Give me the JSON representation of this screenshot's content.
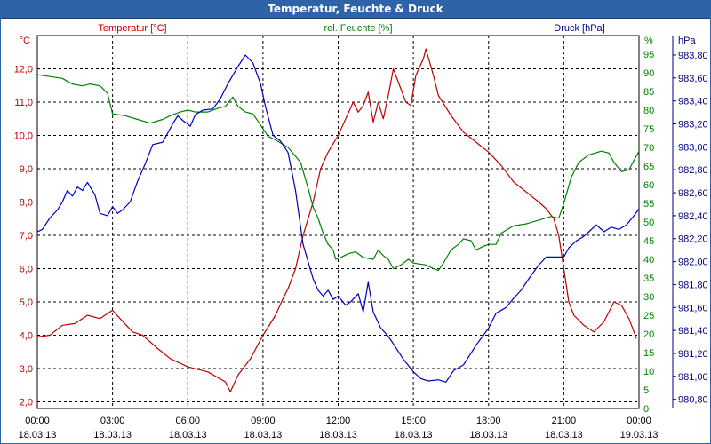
{
  "window": {
    "title": "Temperatur, Feuchte & Druck"
  },
  "chart_data": {
    "type": "line",
    "title": "Temperatur, Feuchte & Druck",
    "x_tick_labels": [
      {
        "time": "00:00",
        "date": "18.03.13"
      },
      {
        "time": "03:00",
        "date": "18.03.13"
      },
      {
        "time": "06:00",
        "date": "18.03.13"
      },
      {
        "time": "09:00",
        "date": "18.03.13"
      },
      {
        "time": "12:00",
        "date": "18.03.13"
      },
      {
        "time": "15:00",
        "date": "18.03.13"
      },
      {
        "time": "18:00",
        "date": "18.03.13"
      },
      {
        "time": "21:00",
        "date": "18.03.13"
      },
      {
        "time": "00:00",
        "date": "19.03.13"
      }
    ],
    "xlim_hours": [
      0,
      24
    ],
    "grid": true,
    "axes": {
      "temperature": {
        "label": "Temperatur [°C]",
        "unit": "°C",
        "side": "left",
        "ylim": [
          1.8,
          13.0
        ],
        "ticks": [
          "2,0",
          "3,0",
          "4,0",
          "5,0",
          "6,0",
          "7,0",
          "8,0",
          "9,0",
          "10,0",
          "11,0",
          "12,0"
        ],
        "tick_values": [
          2,
          3,
          4,
          5,
          6,
          7,
          8,
          9,
          10,
          11,
          12
        ]
      },
      "humidity": {
        "label": "rel. Feuchte [%]",
        "unit": "%",
        "side": "right-inner",
        "ylim": [
          0,
          100
        ],
        "ticks": [
          "0",
          "5",
          "10",
          "15",
          "20",
          "25",
          "30",
          "35",
          "40",
          "45",
          "50",
          "55",
          "60",
          "65",
          "70",
          "75",
          "80",
          "85",
          "90",
          "95"
        ],
        "tick_values": [
          0,
          5,
          10,
          15,
          20,
          25,
          30,
          35,
          40,
          45,
          50,
          55,
          60,
          65,
          70,
          75,
          80,
          85,
          90,
          95
        ]
      },
      "pressure": {
        "label": "Druck [hPa]",
        "unit": "hPa",
        "side": "right-outer",
        "ylim": [
          980.72,
          983.97
        ],
        "ticks": [
          "980,80",
          "981,00",
          "981,20",
          "981,40",
          "981,60",
          "981,80",
          "982,00",
          "982,20",
          "982,40",
          "982,60",
          "982,80",
          "983,00",
          "983,20",
          "983,40",
          "983,60",
          "983,80"
        ],
        "tick_values": [
          980.8,
          981.0,
          981.2,
          981.4,
          981.6,
          981.8,
          982.0,
          982.2,
          982.4,
          982.6,
          982.8,
          983.0,
          983.2,
          983.4,
          983.6,
          983.8
        ]
      }
    },
    "series": [
      {
        "name": "Temperatur [°C]",
        "axis": "temperature",
        "color": "#c00000",
        "points": [
          [
            0.0,
            3.95
          ],
          [
            0.5,
            4.0
          ],
          [
            1.0,
            4.3
          ],
          [
            1.5,
            4.35
          ],
          [
            2.0,
            4.6
          ],
          [
            2.5,
            4.5
          ],
          [
            3.0,
            4.75
          ],
          [
            3.3,
            4.5
          ],
          [
            3.8,
            4.1
          ],
          [
            4.2,
            4.0
          ],
          [
            4.8,
            3.6
          ],
          [
            5.3,
            3.3
          ],
          [
            6.0,
            3.05
          ],
          [
            6.8,
            2.9
          ],
          [
            7.5,
            2.6
          ],
          [
            7.7,
            2.3
          ],
          [
            8.0,
            2.8
          ],
          [
            8.5,
            3.3
          ],
          [
            9.0,
            4.0
          ],
          [
            9.5,
            4.6
          ],
          [
            9.8,
            5.1
          ],
          [
            10.0,
            5.4
          ],
          [
            10.3,
            6.0
          ],
          [
            10.6,
            7.0
          ],
          [
            11.0,
            8.0
          ],
          [
            11.3,
            9.0
          ],
          [
            11.6,
            9.5
          ],
          [
            12.0,
            10.0
          ],
          [
            12.3,
            10.5
          ],
          [
            12.6,
            11.0
          ],
          [
            12.8,
            10.7
          ],
          [
            13.0,
            10.9
          ],
          [
            13.2,
            11.3
          ],
          [
            13.4,
            10.4
          ],
          [
            13.6,
            11.0
          ],
          [
            13.8,
            10.5
          ],
          [
            14.0,
            11.2
          ],
          [
            14.2,
            12.0
          ],
          [
            14.4,
            11.6
          ],
          [
            14.7,
            11.0
          ],
          [
            14.9,
            10.9
          ],
          [
            15.1,
            11.8
          ],
          [
            15.4,
            12.3
          ],
          [
            15.5,
            12.6
          ],
          [
            15.8,
            11.8
          ],
          [
            16.0,
            11.2
          ],
          [
            16.5,
            10.6
          ],
          [
            17.0,
            10.1
          ],
          [
            17.5,
            9.8
          ],
          [
            18.0,
            9.5
          ],
          [
            18.5,
            9.1
          ],
          [
            19.0,
            8.6
          ],
          [
            19.5,
            8.3
          ],
          [
            20.0,
            8.0
          ],
          [
            20.3,
            7.8
          ],
          [
            20.6,
            7.5
          ],
          [
            20.8,
            7.0
          ],
          [
            21.0,
            6.0
          ],
          [
            21.2,
            5.0
          ],
          [
            21.4,
            4.6
          ],
          [
            21.8,
            4.3
          ],
          [
            22.2,
            4.1
          ],
          [
            22.6,
            4.4
          ],
          [
            23.0,
            5.0
          ],
          [
            23.3,
            4.9
          ],
          [
            23.6,
            4.5
          ],
          [
            23.9,
            3.9
          ]
        ]
      },
      {
        "name": "rel. Feuchte [%]",
        "axis": "humidity",
        "color": "#008000",
        "points": [
          [
            0.0,
            89.5
          ],
          [
            0.5,
            89.0
          ],
          [
            1.0,
            88.5
          ],
          [
            1.4,
            87.0
          ],
          [
            1.8,
            86.5
          ],
          [
            2.1,
            87.0
          ],
          [
            2.5,
            86.5
          ],
          [
            2.8,
            84.5
          ],
          [
            3.0,
            79.0
          ],
          [
            3.5,
            78.5
          ],
          [
            4.0,
            77.5
          ],
          [
            4.5,
            76.5
          ],
          [
            5.0,
            77.5
          ],
          [
            5.3,
            78.5
          ],
          [
            5.7,
            79.5
          ],
          [
            6.0,
            80.0
          ],
          [
            6.3,
            79.5
          ],
          [
            6.8,
            79.5
          ],
          [
            7.2,
            80.5
          ],
          [
            7.5,
            81.0
          ],
          [
            7.8,
            83.5
          ],
          [
            8.0,
            81.0
          ],
          [
            8.3,
            79.5
          ],
          [
            8.6,
            79.0
          ],
          [
            8.9,
            76.0
          ],
          [
            9.2,
            73.0
          ],
          [
            9.5,
            72.0
          ],
          [
            10.0,
            70.0
          ],
          [
            10.5,
            66.0
          ],
          [
            10.8,
            59.0
          ],
          [
            11.0,
            54.0
          ],
          [
            11.2,
            51.0
          ],
          [
            11.4,
            47.0
          ],
          [
            11.6,
            44.0
          ],
          [
            11.8,
            42.5
          ],
          [
            11.9,
            40.0
          ],
          [
            12.1,
            40.5
          ],
          [
            12.4,
            41.5
          ],
          [
            12.7,
            42.0
          ],
          [
            13.0,
            40.5
          ],
          [
            13.4,
            40.0
          ],
          [
            13.6,
            42.5
          ],
          [
            13.8,
            41.0
          ],
          [
            14.0,
            40.0
          ],
          [
            14.2,
            37.5
          ],
          [
            14.5,
            38.5
          ],
          [
            14.8,
            40.0
          ],
          [
            15.0,
            39.0
          ],
          [
            15.5,
            38.5
          ],
          [
            15.8,
            37.5
          ],
          [
            16.0,
            37.0
          ],
          [
            16.2,
            39.0
          ],
          [
            16.5,
            42.5
          ],
          [
            16.8,
            44.0
          ],
          [
            17.0,
            45.5
          ],
          [
            17.3,
            45.0
          ],
          [
            17.5,
            42.5
          ],
          [
            17.8,
            43.5
          ],
          [
            18.0,
            44.0
          ],
          [
            18.3,
            44.0
          ],
          [
            18.5,
            47.0
          ],
          [
            19.0,
            49.0
          ],
          [
            19.5,
            49.5
          ],
          [
            20.0,
            50.5
          ],
          [
            20.5,
            51.5
          ],
          [
            20.8,
            51.0
          ],
          [
            21.0,
            55.0
          ],
          [
            21.3,
            62.0
          ],
          [
            21.6,
            66.0
          ],
          [
            22.0,
            68.0
          ],
          [
            22.5,
            69.0
          ],
          [
            22.8,
            68.5
          ],
          [
            23.0,
            66.0
          ],
          [
            23.3,
            63.5
          ],
          [
            23.6,
            64.0
          ],
          [
            24.0,
            69.0
          ]
        ]
      },
      {
        "name": "Druck [hPa]",
        "axis": "pressure",
        "color": "#0000c0",
        "points": [
          [
            0.0,
            982.26
          ],
          [
            0.2,
            982.28
          ],
          [
            0.5,
            982.38
          ],
          [
            0.8,
            982.45
          ],
          [
            1.0,
            982.52
          ],
          [
            1.2,
            982.62
          ],
          [
            1.4,
            982.57
          ],
          [
            1.6,
            982.65
          ],
          [
            1.8,
            982.62
          ],
          [
            2.0,
            982.69
          ],
          [
            2.3,
            982.58
          ],
          [
            2.5,
            982.42
          ],
          [
            2.8,
            982.4
          ],
          [
            3.0,
            982.48
          ],
          [
            3.2,
            982.42
          ],
          [
            3.4,
            982.45
          ],
          [
            3.7,
            982.52
          ],
          [
            4.0,
            982.7
          ],
          [
            4.3,
            982.85
          ],
          [
            4.6,
            983.02
          ],
          [
            4.8,
            983.03
          ],
          [
            5.0,
            983.04
          ],
          [
            5.2,
            983.12
          ],
          [
            5.4,
            983.2
          ],
          [
            5.6,
            983.27
          ],
          [
            5.8,
            983.23
          ],
          [
            6.1,
            983.18
          ],
          [
            6.3,
            983.28
          ],
          [
            6.6,
            983.32
          ],
          [
            7.0,
            983.33
          ],
          [
            7.3,
            983.42
          ],
          [
            7.6,
            983.55
          ],
          [
            8.0,
            983.7
          ],
          [
            8.3,
            983.8
          ],
          [
            8.6,
            983.73
          ],
          [
            8.9,
            983.55
          ],
          [
            9.1,
            983.35
          ],
          [
            9.4,
            983.1
          ],
          [
            9.7,
            983.05
          ],
          [
            10.0,
            982.95
          ],
          [
            10.3,
            982.62
          ],
          [
            10.6,
            982.15
          ],
          [
            11.0,
            981.85
          ],
          [
            11.2,
            981.75
          ],
          [
            11.4,
            981.7
          ],
          [
            11.6,
            981.75
          ],
          [
            11.8,
            981.67
          ],
          [
            12.0,
            981.7
          ],
          [
            12.3,
            981.62
          ],
          [
            12.5,
            981.65
          ],
          [
            12.8,
            981.72
          ],
          [
            13.0,
            981.56
          ],
          [
            13.2,
            981.82
          ],
          [
            13.4,
            981.56
          ],
          [
            13.7,
            981.42
          ],
          [
            14.0,
            981.35
          ],
          [
            14.3,
            981.25
          ],
          [
            14.6,
            981.15
          ],
          [
            15.0,
            981.04
          ],
          [
            15.3,
            980.98
          ],
          [
            15.6,
            980.96
          ],
          [
            16.0,
            980.97
          ],
          [
            16.3,
            980.95
          ],
          [
            16.6,
            981.05
          ],
          [
            17.0,
            981.1
          ],
          [
            17.5,
            981.27
          ],
          [
            18.0,
            981.42
          ],
          [
            18.3,
            981.55
          ],
          [
            18.7,
            981.6
          ],
          [
            19.0,
            981.68
          ],
          [
            19.3,
            981.75
          ],
          [
            19.6,
            981.85
          ],
          [
            20.0,
            981.97
          ],
          [
            20.3,
            982.04
          ],
          [
            20.6,
            982.04
          ],
          [
            21.0,
            982.04
          ],
          [
            21.2,
            982.12
          ],
          [
            21.5,
            982.18
          ],
          [
            21.8,
            982.22
          ],
          [
            22.0,
            982.26
          ],
          [
            22.3,
            982.32
          ],
          [
            22.6,
            982.26
          ],
          [
            22.9,
            982.3
          ],
          [
            23.2,
            982.28
          ],
          [
            23.5,
            982.32
          ],
          [
            23.8,
            982.4
          ],
          [
            24.0,
            982.46
          ]
        ]
      }
    ]
  }
}
